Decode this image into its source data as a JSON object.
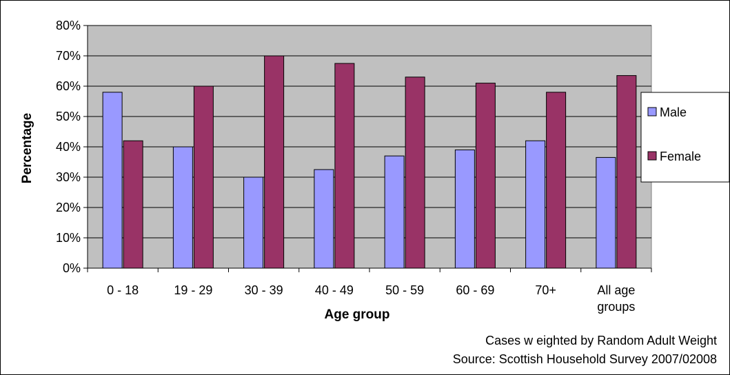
{
  "chart_data": {
    "type": "bar",
    "categories": [
      "0 - 18",
      "19 - 29",
      "30 - 39",
      "40 - 49",
      "50 - 59",
      "60 - 69",
      "70+",
      "All age groups"
    ],
    "series": [
      {
        "name": "Male",
        "values": [
          58,
          40,
          30,
          32.5,
          37,
          39,
          42,
          36.5
        ],
        "color": "#9999ff"
      },
      {
        "name": "Female",
        "values": [
          42,
          60,
          70,
          67.5,
          63,
          61,
          58,
          63.5
        ],
        "color": "#993366"
      }
    ],
    "title": "",
    "xlabel": "Age group",
    "ylabel": "Percentage",
    "ylim": [
      0,
      80
    ],
    "yticks": [
      "0%",
      "10%",
      "20%",
      "30%",
      "40%",
      "50%",
      "60%",
      "70%",
      "80%"
    ],
    "grid": true,
    "legend_position": "right",
    "plot_background": "#c0c0c0",
    "notes": [
      "Cases w eighted by Random Adult Weight",
      "Source: Scottish Household Survey 2007/02008"
    ]
  }
}
